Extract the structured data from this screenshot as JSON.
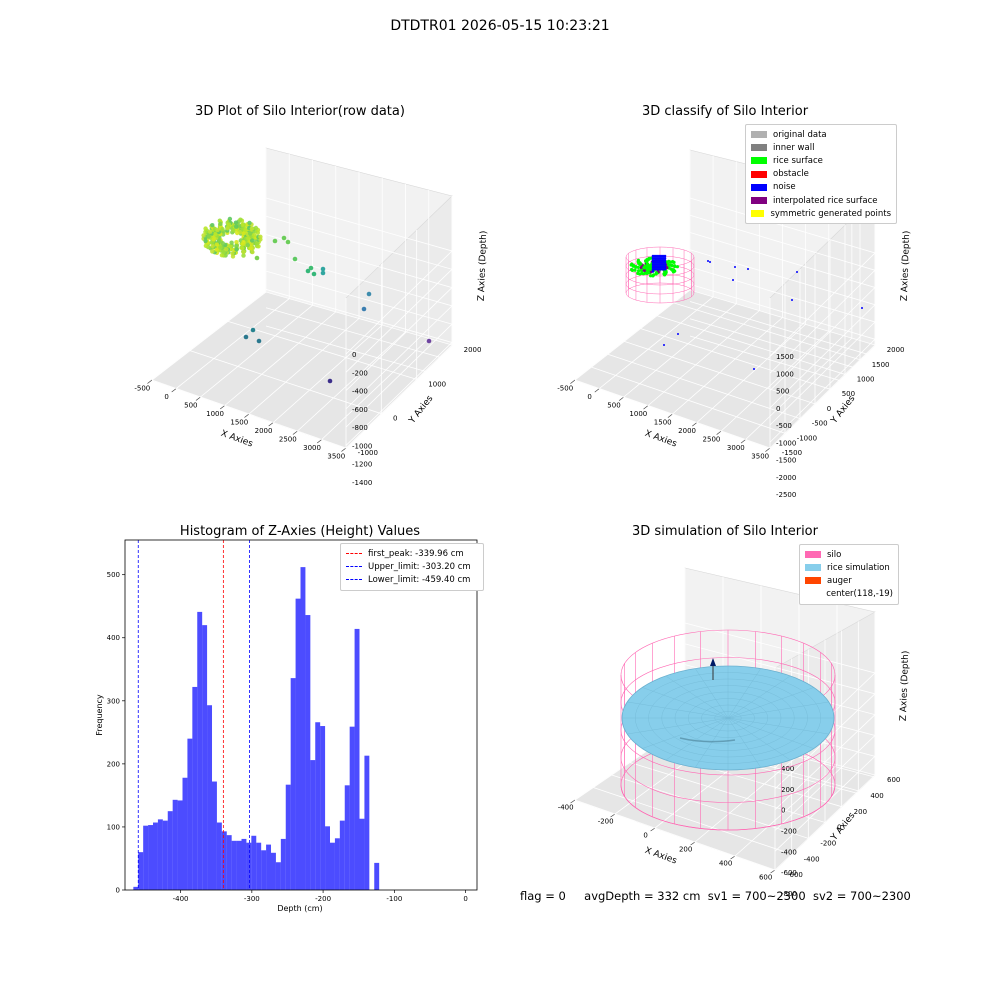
{
  "figure": {
    "suptitle": "DTDTR01 2026-05-15 10:23:21",
    "footer": {
      "flag": "flag = 0",
      "avg_depth": "avgDepth = 332 cm",
      "sv1": "sv1 = 700~2300",
      "sv2": "sv2 = 700~2300"
    }
  },
  "panels": {
    "raw": {
      "title": "3D Plot of Silo Interior(row data)",
      "xlabel": "X Axies",
      "ylabel": "Y Axies",
      "zlabel": "Z Axies (Depth)",
      "xticks": [
        "-500",
        "0",
        "500",
        "1000",
        "1500",
        "2000",
        "2500",
        "3000",
        "3500"
      ],
      "yticks": [
        "-1000",
        "0",
        "1000",
        "2000"
      ],
      "zticks": [
        "0",
        "-200",
        "-400",
        "-600",
        "-800",
        "-1000",
        "-1200",
        "-1400"
      ]
    },
    "classify": {
      "title": "3D classify of Silo Interior",
      "xlabel": "X Axies",
      "ylabel": "Y Axies",
      "zlabel": "Z Axies (Depth)",
      "xticks": [
        "-500",
        "0",
        "500",
        "1000",
        "1500",
        "2000",
        "2500",
        "3000",
        "3500"
      ],
      "yticks": [
        "-1500",
        "-1000",
        "-500",
        "0",
        "500",
        "1000",
        "1500",
        "2000"
      ],
      "zticks": [
        "1500",
        "1000",
        "500",
        "0",
        "-500",
        "-1000",
        "-1500",
        "-2000",
        "-2500"
      ],
      "legend": [
        {
          "label": "original data",
          "color": "#b0b0b0"
        },
        {
          "label": "inner wall",
          "color": "#808080"
        },
        {
          "label": "rice surface",
          "color": "#00ff00"
        },
        {
          "label": "obstacle",
          "color": "#ff0000"
        },
        {
          "label": "noise",
          "color": "#0000ff"
        },
        {
          "label": "interpolated rice surface",
          "color": "#800080"
        },
        {
          "label": "symmetric generated points",
          "color": "#ffff00"
        }
      ]
    },
    "simulation": {
      "title": "3D simulation of Silo Interior",
      "xlabel": "X Axies",
      "ylabel": "Y Axies",
      "zlabel": "Z Axies (Depth)",
      "xticks": [
        "-400",
        "-200",
        "0",
        "200",
        "400",
        "600"
      ],
      "yticks": [
        "-600",
        "-400",
        "-200",
        "0",
        "200",
        "400",
        "600"
      ],
      "zticks": [
        "400",
        "200",
        "0",
        "-200",
        "-400",
        "-600",
        "-800"
      ],
      "legend": [
        {
          "label": "silo",
          "color": "#ff69b4"
        },
        {
          "label": "rice simulation",
          "color": "#87ceeb"
        },
        {
          "label": "auger",
          "color": "#ff4500"
        },
        {
          "label": "center(118,-19)",
          "color": "transparent"
        }
      ],
      "colors": {
        "silo": "#ff69b4",
        "rice": "#87ceeb"
      }
    }
  },
  "chart_data": {
    "type": "bar",
    "title": "Histogram of Z-Axies (Height) Values",
    "xlabel": "Depth (cm)",
    "ylabel": "Frequency",
    "xlim": [
      -478,
      16
    ],
    "ylim": [
      0,
      555
    ],
    "xticks": [
      -400,
      -300,
      -200,
      -100,
      0
    ],
    "yticks": [
      0,
      100,
      200,
      300,
      400,
      500
    ],
    "bar_color": "#0000ff",
    "bin_width": 6.9,
    "bin_start": -466.3,
    "values": [
      5,
      60,
      102,
      103,
      107,
      112,
      110,
      125,
      143,
      142,
      178,
      240,
      322,
      441,
      420,
      293,
      172,
      107,
      93,
      87,
      78,
      78,
      81,
      75,
      86,
      75,
      63,
      72,
      59,
      44,
      81,
      167,
      336,
      462,
      512,
      436,
      206,
      266,
      260,
      101,
      75,
      82,
      110,
      166,
      259,
      414,
      113,
      213,
      0,
      43
    ],
    "vlines": [
      {
        "label": "first_peak: -339.96 cm",
        "x": -339.96,
        "color": "#ff0000"
      },
      {
        "label": "Upper_limit: -303.20 cm",
        "x": -303.2,
        "color": "#0000ff"
      },
      {
        "label": "Lower_limit: -459.40 cm",
        "x": -459.4,
        "color": "#0000ff"
      }
    ]
  }
}
